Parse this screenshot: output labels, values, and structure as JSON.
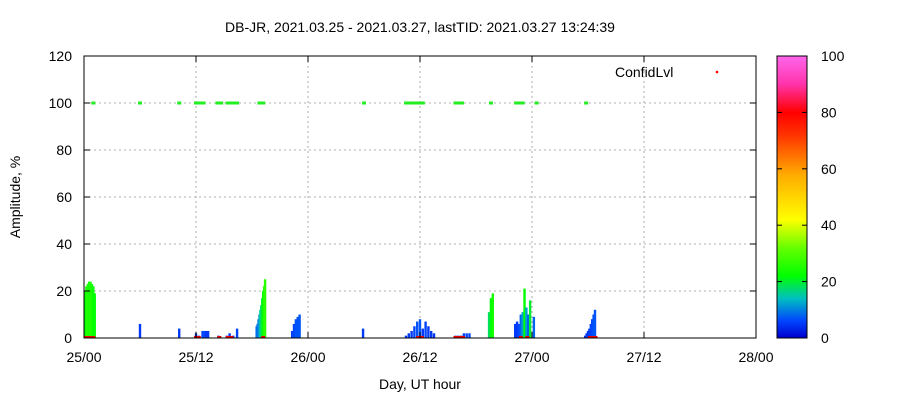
{
  "chart_data": {
    "type": "bar",
    "title": "DB-JR, 2021.03.25 - 2021.03.27, lastTID: 2021.03.27 13:24:39",
    "xlabel": "Day, UT hour",
    "ylabel": "Amplitude, %",
    "x_unit": "hours since 25/00",
    "xlim": [
      0,
      72
    ],
    "ylim": [
      0,
      120
    ],
    "x_ticks": [
      {
        "value": 0,
        "label": "25/00"
      },
      {
        "value": 12,
        "label": "25/12"
      },
      {
        "value": 24,
        "label": "26/00"
      },
      {
        "value": 36,
        "label": "26/12"
      },
      {
        "value": 48,
        "label": "27/00"
      },
      {
        "value": 60,
        "label": "27/12"
      },
      {
        "value": 72,
        "label": "28/00"
      }
    ],
    "y_ticks": [
      0,
      20,
      40,
      60,
      80,
      100,
      120
    ],
    "grid": true,
    "legend": {
      "label": "ConfidLvl",
      "position": "top-right"
    },
    "colorbar": {
      "min": 0,
      "max": 100,
      "ticks": [
        0,
        20,
        40,
        60,
        80,
        100
      ]
    },
    "series": [
      {
        "name": "ConfidLvl",
        "bars": [
          {
            "x": 0.1,
            "y": 20,
            "c": 22
          },
          {
            "x": 0.25,
            "y": 22,
            "c": 24
          },
          {
            "x": 0.4,
            "y": 23,
            "c": 25
          },
          {
            "x": 0.55,
            "y": 24,
            "c": 24
          },
          {
            "x": 0.7,
            "y": 24,
            "c": 25
          },
          {
            "x": 0.85,
            "y": 23,
            "c": 24
          },
          {
            "x": 1.0,
            "y": 22,
            "c": 23
          },
          {
            "x": 1.15,
            "y": 19,
            "c": 22
          },
          {
            "x": 6.0,
            "y": 6,
            "c": 5
          },
          {
            "x": 10.2,
            "y": 4,
            "c": 5
          },
          {
            "x": 12.0,
            "y": 2,
            "c": 6
          },
          {
            "x": 12.3,
            "y": 1,
            "c": 5
          },
          {
            "x": 12.7,
            "y": 3,
            "c": 6
          },
          {
            "x": 12.9,
            "y": 3,
            "c": 6
          },
          {
            "x": 13.1,
            "y": 3,
            "c": 5
          },
          {
            "x": 13.3,
            "y": 3,
            "c": 5
          },
          {
            "x": 14.4,
            "y": 1,
            "c": 5
          },
          {
            "x": 15.3,
            "y": 1,
            "c": 5
          },
          {
            "x": 15.6,
            "y": 2,
            "c": 5
          },
          {
            "x": 16.0,
            "y": 1,
            "c": 5
          },
          {
            "x": 16.4,
            "y": 4,
            "c": 6
          },
          {
            "x": 18.5,
            "y": 5,
            "c": 8
          },
          {
            "x": 18.6,
            "y": 6,
            "c": 9
          },
          {
            "x": 18.7,
            "y": 8,
            "c": 10
          },
          {
            "x": 18.8,
            "y": 10,
            "c": 12
          },
          {
            "x": 18.9,
            "y": 12,
            "c": 15
          },
          {
            "x": 19.0,
            "y": 14,
            "c": 18
          },
          {
            "x": 19.1,
            "y": 17,
            "c": 20
          },
          {
            "x": 19.2,
            "y": 20,
            "c": 22
          },
          {
            "x": 19.3,
            "y": 22,
            "c": 25
          },
          {
            "x": 19.4,
            "y": 25,
            "c": 26
          },
          {
            "x": 22.3,
            "y": 3,
            "c": 6
          },
          {
            "x": 22.5,
            "y": 6,
            "c": 6
          },
          {
            "x": 22.7,
            "y": 8,
            "c": 7
          },
          {
            "x": 22.9,
            "y": 9,
            "c": 7
          },
          {
            "x": 23.1,
            "y": 10,
            "c": 7
          },
          {
            "x": 29.9,
            "y": 4,
            "c": 5
          },
          {
            "x": 34.5,
            "y": 1,
            "c": 5
          },
          {
            "x": 34.8,
            "y": 2,
            "c": 5
          },
          {
            "x": 35.1,
            "y": 3,
            "c": 5
          },
          {
            "x": 35.4,
            "y": 5,
            "c": 6
          },
          {
            "x": 35.7,
            "y": 7,
            "c": 7
          },
          {
            "x": 36.0,
            "y": 8,
            "c": 7
          },
          {
            "x": 36.3,
            "y": 4,
            "c": 5
          },
          {
            "x": 36.6,
            "y": 7,
            "c": 6
          },
          {
            "x": 36.9,
            "y": 5,
            "c": 5
          },
          {
            "x": 37.2,
            "y": 3,
            "c": 5
          },
          {
            "x": 37.5,
            "y": 2,
            "c": 5
          },
          {
            "x": 39.8,
            "y": 1,
            "c": 5
          },
          {
            "x": 40.1,
            "y": 1,
            "c": 5
          },
          {
            "x": 40.4,
            "y": 1,
            "c": 5
          },
          {
            "x": 40.7,
            "y": 2,
            "c": 6
          },
          {
            "x": 41.0,
            "y": 2,
            "c": 6
          },
          {
            "x": 41.3,
            "y": 2,
            "c": 6
          },
          {
            "x": 43.4,
            "y": 11,
            "c": 18
          },
          {
            "x": 43.6,
            "y": 17,
            "c": 22
          },
          {
            "x": 43.8,
            "y": 19,
            "c": 24
          },
          {
            "x": 46.2,
            "y": 6,
            "c": 5
          },
          {
            "x": 46.4,
            "y": 7,
            "c": 5
          },
          {
            "x": 46.6,
            "y": 6,
            "c": 6
          },
          {
            "x": 46.8,
            "y": 10,
            "c": 8
          },
          {
            "x": 47.0,
            "y": 11,
            "c": 12
          },
          {
            "x": 47.2,
            "y": 21,
            "c": 22
          },
          {
            "x": 47.4,
            "y": 13,
            "c": 12
          },
          {
            "x": 47.6,
            "y": 10,
            "c": 8
          },
          {
            "x": 47.8,
            "y": 16,
            "c": 20
          },
          {
            "x": 48.2,
            "y": 9,
            "c": 8
          },
          {
            "x": 53.7,
            "y": 1,
            "c": 4
          },
          {
            "x": 53.85,
            "y": 2,
            "c": 5
          },
          {
            "x": 54.0,
            "y": 3,
            "c": 5
          },
          {
            "x": 54.15,
            "y": 4,
            "c": 5
          },
          {
            "x": 54.3,
            "y": 6,
            "c": 6
          },
          {
            "x": 54.45,
            "y": 8,
            "c": 6
          },
          {
            "x": 54.6,
            "y": 10,
            "c": 7
          },
          {
            "x": 54.75,
            "y": 12,
            "c": 7
          }
        ]
      },
      {
        "name": "ConfidLvl_100",
        "points_y": 100,
        "x": [
          1.0,
          6.0,
          10.2,
          12.0,
          12.4,
          12.8,
          14.3,
          14.7,
          15.4,
          15.8,
          16.1,
          16.4,
          18.8,
          19.2,
          30.0,
          34.5,
          34.8,
          35.1,
          35.4,
          35.7,
          36.0,
          36.3,
          39.8,
          40.1,
          40.5,
          43.6,
          46.3,
          46.7,
          47.0,
          48.5,
          53.8
        ]
      }
    ],
    "red_marks_x": [
      0.2,
      0.5,
      0.8,
      1.0,
      12.0,
      12.3,
      14.5,
      15.4,
      15.8,
      19.2,
      35.8,
      36.2,
      39.8,
      40.2,
      40.6,
      46.8,
      47.5,
      54.2,
      54.6,
      54.8
    ]
  }
}
